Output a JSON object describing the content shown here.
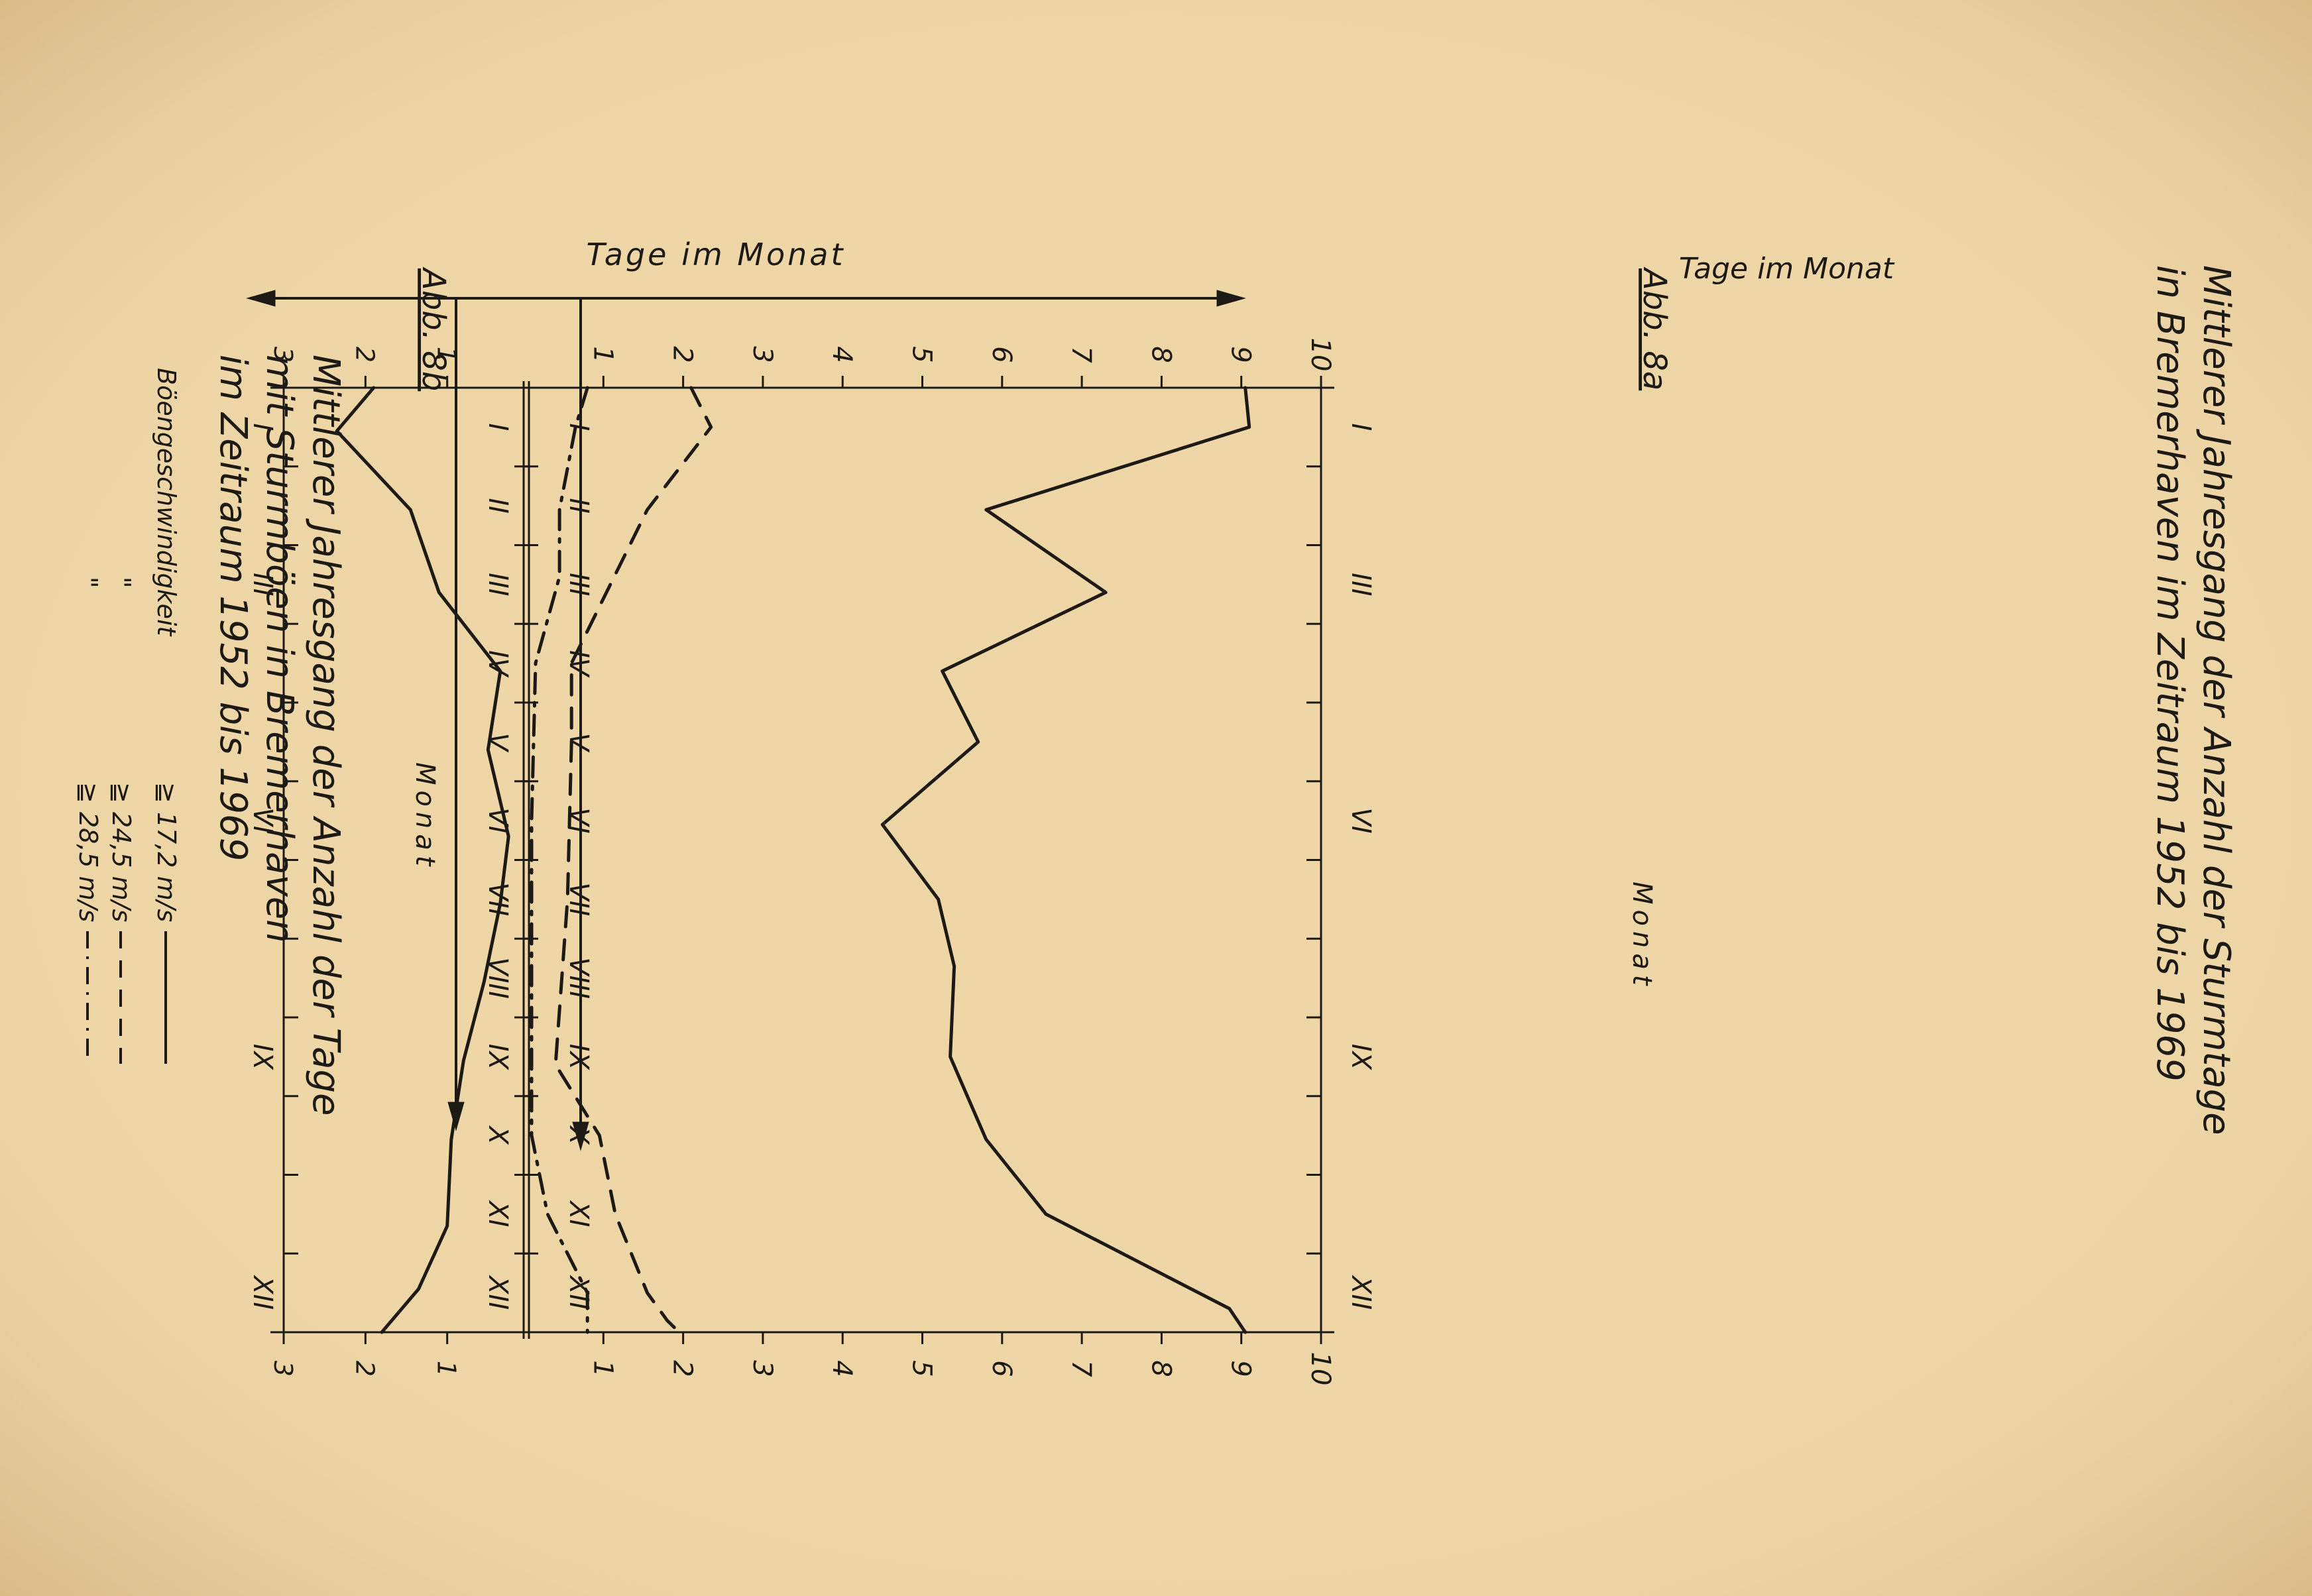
{
  "chart_data": [
    {
      "type": "line",
      "figure_label": "Abb. 8a",
      "title": "Mittlerer Jahresgang der Anzahl der Sturmtage in Bremerhaven im Zeitraum 1952 bis 1969",
      "title_lines": [
        "Mittlerer Jahresgang der Anzahl der Sturmtage",
        "in Bremerhaven im Zeitraum 1952 bis 1969"
      ],
      "xlabel": "Monat",
      "ylabel": "Tage im Monat",
      "x_tick_labels_a": [
        "I",
        "II",
        "III",
        "IV",
        "V",
        "VI",
        "VII",
        "VIII",
        "IX",
        "X",
        "XI",
        "XII"
      ],
      "x_tick_labels_b": [
        "I",
        "",
        "III",
        "",
        "",
        "VI",
        "",
        "",
        "IX",
        "",
        "",
        "XII"
      ],
      "y_ticks": [
        1,
        2,
        3
      ],
      "ylim": [
        0,
        3
      ],
      "grid": false,
      "categories": [
        "I",
        "II",
        "III",
        "IV",
        "V",
        "VI",
        "VII",
        "VIII",
        "IX",
        "X",
        "XI",
        "XII"
      ],
      "series": [
        {
          "style": "solid",
          "x": [
            0.0,
            0.55,
            1.55,
            2.6,
            3.6,
            4.6,
            5.7,
            6.55,
            7.55,
            8.55,
            9.55,
            10.65,
            11.45,
            12.0
          ],
          "y": [
            1.9,
            2.35,
            1.45,
            1.1,
            0.35,
            0.5,
            0.25,
            0.35,
            0.55,
            0.8,
            0.95,
            1.0,
            1.35,
            1.8
          ]
        }
      ]
    },
    {
      "type": "line",
      "figure_label": "Abb. 8b",
      "title": "Mittlerer Jahresgang der Anzahl der Tage mit Sturmböen in Bremerhaven im Zeitraum 1952 bis 1969",
      "title_lines": [
        "Mittlerer Jahresgang der Anzahl der Tage",
        "mit Sturmböen in Bremerhaven",
        "im Zeitraum 1952 bis 1969"
      ],
      "xlabel": "Monat",
      "ylabel": "Tage im Monat",
      "x_tick_labels_a": [
        "I",
        "II",
        "III",
        "IV",
        "V",
        "VI",
        "VII",
        "VIII",
        "IX",
        "X",
        "XI",
        "XII"
      ],
      "x_tick_labels_b": [
        "I",
        "",
        "III",
        "",
        "",
        "VI",
        "",
        "",
        "IX",
        "",
        "",
        "XII"
      ],
      "y_ticks": [
        1,
        2,
        3,
        4,
        5,
        6,
        7,
        8,
        9,
        10
      ],
      "ylim": [
        0,
        10
      ],
      "grid": false,
      "legend": {
        "heading": "Böengeschwindigkeit",
        "rows": [
          {
            "prefix": "",
            "cmp": "≧",
            "value": "17,2 m/s",
            "style": "solid"
          },
          {
            "prefix": "\"",
            "cmp": "≧",
            "value": "24,5 m/s",
            "style": "dashed"
          },
          {
            "prefix": "\"",
            "cmp": "≧",
            "value": "28,5 m/s",
            "style": "dashdot"
          }
        ]
      },
      "categories": [
        "I",
        "II",
        "III",
        "IV",
        "V",
        "VI",
        "VII",
        "VIII",
        "IX",
        "X",
        "XI",
        "XII"
      ],
      "series": [
        {
          "name": "17,2 m/s",
          "style": "solid",
          "x": [
            0.0,
            0.5,
            1.55,
            2.6,
            3.6,
            4.5,
            5.55,
            6.5,
            7.35,
            8.5,
            9.55,
            10.5,
            11.7,
            12.0
          ],
          "y": [
            9.05,
            9.1,
            5.8,
            7.3,
            5.25,
            5.7,
            4.5,
            5.2,
            5.4,
            5.35,
            5.8,
            6.55,
            8.85,
            9.05
          ]
        },
        {
          "name": "24,5 m/s",
          "style": "dashed",
          "x": [
            0.0,
            0.5,
            1.55,
            3.5,
            4.5,
            6.5,
            8.6,
            9.5,
            10.5,
            11.5,
            11.85,
            12.0
          ],
          "y": [
            2.1,
            2.35,
            1.55,
            0.6,
            0.6,
            0.55,
            0.4,
            0.95,
            1.15,
            1.55,
            1.8,
            1.95
          ]
        },
        {
          "name": "28,5 m/s",
          "style": "dashdot",
          "x": [
            0.0,
            0.5,
            1.55,
            2.4,
            3.5,
            5.5,
            7.5,
            9.5,
            10.5,
            11.5,
            12.0
          ],
          "y": [
            0.8,
            0.65,
            0.45,
            0.45,
            0.15,
            0.1,
            0.1,
            0.1,
            0.3,
            0.8,
            0.8
          ]
        }
      ]
    }
  ]
}
